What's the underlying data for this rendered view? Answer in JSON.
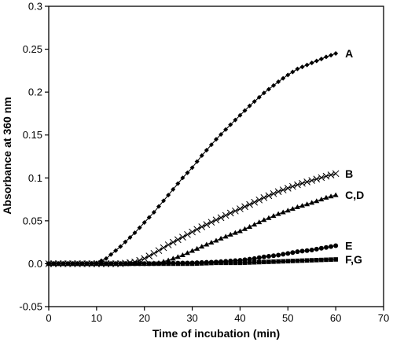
{
  "chart_data": {
    "type": "line",
    "xlabel": "Time of incubation (min)",
    "ylabel": "Absorbance at 360 nm",
    "xlim": [
      0,
      70
    ],
    "ylim": [
      -0.05,
      0.3
    ],
    "x_ticks": [
      0,
      10,
      20,
      30,
      40,
      50,
      60,
      70
    ],
    "x_tick_labels": [
      "0",
      "10",
      "20",
      "30",
      "40",
      "50",
      "60",
      "70"
    ],
    "y_ticks": [
      -0.05,
      0,
      0.05,
      0.1,
      0.15,
      0.2,
      0.25,
      0.3
    ],
    "y_tick_labels": [
      "-0.05",
      "0.0",
      "0.05",
      "0.1",
      "0.15",
      "0.2",
      "0.25",
      "0.3"
    ],
    "grid": false,
    "series": [
      {
        "name": "A",
        "marker": "diamond",
        "points": [
          [
            0,
            0
          ],
          [
            5,
            0
          ],
          [
            8,
            0
          ],
          [
            10,
            0.001
          ],
          [
            12,
            0.006
          ],
          [
            15,
            0.02
          ],
          [
            18,
            0.036
          ],
          [
            20,
            0.048
          ],
          [
            22,
            0.06
          ],
          [
            25,
            0.08
          ],
          [
            28,
            0.1
          ],
          [
            30,
            0.112
          ],
          [
            32,
            0.126
          ],
          [
            35,
            0.145
          ],
          [
            38,
            0.162
          ],
          [
            40,
            0.173
          ],
          [
            42,
            0.184
          ],
          [
            45,
            0.199
          ],
          [
            48,
            0.212
          ],
          [
            50,
            0.22
          ],
          [
            52,
            0.227
          ],
          [
            55,
            0.234
          ],
          [
            58,
            0.241
          ],
          [
            60,
            0.245
          ]
        ]
      },
      {
        "name": "B",
        "marker": "x",
        "points": [
          [
            0,
            0
          ],
          [
            10,
            0
          ],
          [
            15,
            0
          ],
          [
            18,
            0.002
          ],
          [
            20,
            0.006
          ],
          [
            22,
            0.012
          ],
          [
            25,
            0.022
          ],
          [
            28,
            0.031
          ],
          [
            30,
            0.037
          ],
          [
            32,
            0.043
          ],
          [
            35,
            0.051
          ],
          [
            38,
            0.059
          ],
          [
            40,
            0.064
          ],
          [
            42,
            0.069
          ],
          [
            45,
            0.077
          ],
          [
            48,
            0.084
          ],
          [
            50,
            0.088
          ],
          [
            52,
            0.092
          ],
          [
            55,
            0.097
          ],
          [
            58,
            0.102
          ],
          [
            60,
            0.105
          ]
        ]
      },
      {
        "name": "C,D",
        "marker": "triangle",
        "points": [
          [
            0,
            0
          ],
          [
            10,
            0
          ],
          [
            20,
            0
          ],
          [
            23,
            0.001
          ],
          [
            25,
            0.004
          ],
          [
            28,
            0.01
          ],
          [
            30,
            0.015
          ],
          [
            32,
            0.02
          ],
          [
            35,
            0.027
          ],
          [
            38,
            0.034
          ],
          [
            40,
            0.038
          ],
          [
            42,
            0.043
          ],
          [
            45,
            0.051
          ],
          [
            48,
            0.058
          ],
          [
            50,
            0.062
          ],
          [
            52,
            0.066
          ],
          [
            55,
            0.071
          ],
          [
            58,
            0.077
          ],
          [
            60,
            0.08
          ]
        ]
      },
      {
        "name": "E",
        "marker": "circle",
        "points": [
          [
            0,
            0
          ],
          [
            10,
            0
          ],
          [
            20,
            0
          ],
          [
            30,
            0.001
          ],
          [
            35,
            0.002
          ],
          [
            40,
            0.004
          ],
          [
            43,
            0.006
          ],
          [
            45,
            0.008
          ],
          [
            48,
            0.01
          ],
          [
            50,
            0.012
          ],
          [
            52,
            0.014
          ],
          [
            55,
            0.016
          ],
          [
            58,
            0.019
          ],
          [
            60,
            0.021
          ]
        ]
      },
      {
        "name": "F,G",
        "marker": "square",
        "points": [
          [
            0,
            0
          ],
          [
            10,
            0
          ],
          [
            20,
            0
          ],
          [
            30,
            0
          ],
          [
            35,
            0.001
          ],
          [
            40,
            0.001
          ],
          [
            45,
            0.002
          ],
          [
            50,
            0.003
          ],
          [
            55,
            0.004
          ],
          [
            60,
            0.005
          ]
        ]
      }
    ]
  }
}
